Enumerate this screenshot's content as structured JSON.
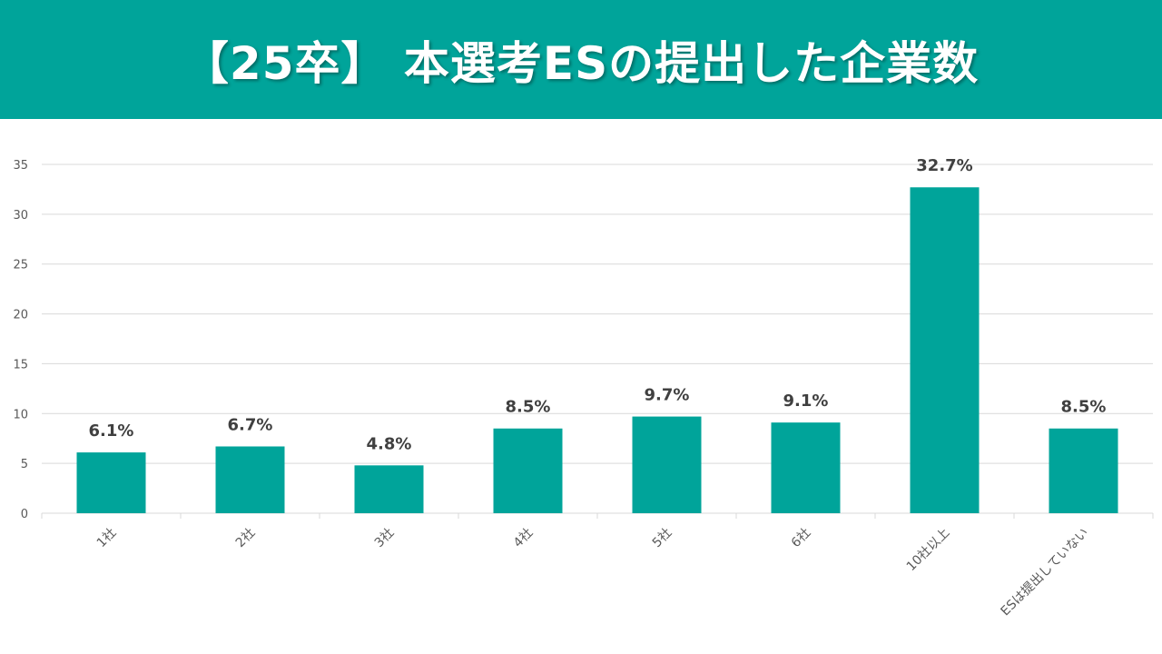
{
  "header": {
    "title": "【25卒】 本選考ESの提出した企業数"
  },
  "colors": {
    "bar": "#00A49A",
    "header_bg": "#00A49A",
    "grid": "#D9D9D9"
  },
  "chart_data": {
    "type": "bar",
    "categories": [
      "1社",
      "2社",
      "3社",
      "4社",
      "5社",
      "6社",
      "10社以上",
      "ESは提出していない"
    ],
    "values": [
      6.1,
      6.7,
      4.8,
      8.5,
      9.7,
      9.1,
      32.7,
      8.5
    ],
    "data_labels": [
      "6.1%",
      "6.7%",
      "4.8%",
      "8.5%",
      "9.7%",
      "9.1%",
      "32.7%",
      "8.5%"
    ],
    "ylim": [
      0,
      35
    ],
    "yticks": [
      0,
      5,
      10,
      15,
      20,
      25,
      30,
      35
    ],
    "grid": true,
    "legend": "none"
  }
}
